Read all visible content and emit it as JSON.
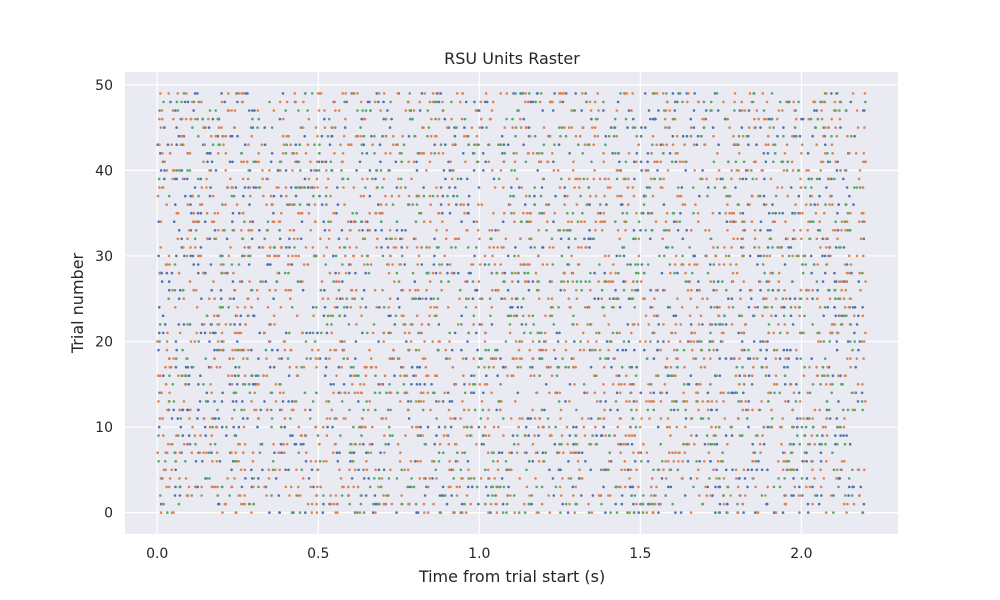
{
  "chart_data": {
    "type": "scatter",
    "subtype": "spike-raster",
    "title": "RSU Units Raster",
    "xlabel": "Time from trial start (s)",
    "ylabel": "Trial number",
    "xlim": [
      -0.1,
      2.3
    ],
    "ylim": [
      -2.5,
      51.5
    ],
    "x_ticks": [
      0.0,
      0.5,
      1.0,
      1.5,
      2.0
    ],
    "x_tick_labels": [
      "0.0",
      "0.5",
      "1.0",
      "1.5",
      "2.0"
    ],
    "y_ticks": [
      0,
      10,
      20,
      30,
      40,
      50
    ],
    "y_tick_labels": [
      "0",
      "10",
      "20",
      "30",
      "40",
      "50"
    ],
    "grid": true,
    "legend": "none",
    "background_color": "#eaeaf2",
    "grid_color": "#ffffff",
    "trial_range": [
      0,
      49
    ],
    "time_range": [
      0.0,
      2.2
    ],
    "series": [
      {
        "color": "#4c72b0",
        "approx_spikes_per_trial": 30
      },
      {
        "color": "#dd8452",
        "approx_spikes_per_trial": 45
      },
      {
        "color": "#55a868",
        "approx_spikes_per_trial": 22
      }
    ]
  }
}
